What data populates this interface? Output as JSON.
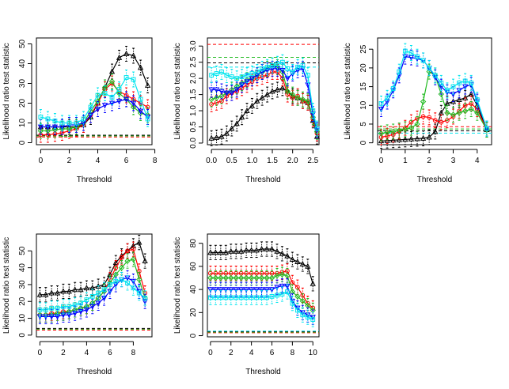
{
  "figure": {
    "background": "#ffffff"
  },
  "series_colors": {
    "s1": "#000000",
    "s2": "#ff0000",
    "s3": "#22bb22",
    "s4": "#0000ff",
    "s5": "#00e5ee"
  },
  "chart_data": [
    {
      "type": "line",
      "xlabel": "Threshold",
      "ylabel": "Likelihood ratio test statistic",
      "xlim": [
        -0.3,
        7.8
      ],
      "ylim": [
        -1,
        53
      ],
      "xticks": [
        0,
        2,
        4,
        6,
        8
      ],
      "yticks": [
        0,
        10,
        20,
        30,
        40,
        50
      ],
      "x": [
        0,
        0.5,
        1,
        1.5,
        2,
        2.5,
        3,
        3.5,
        4,
        4.5,
        5,
        5.5,
        6,
        6.5,
        7,
        7.5
      ],
      "reference_lines": [
        2.9,
        3.4,
        3.8
      ],
      "series": [
        {
          "values": [
            8,
            8,
            8,
            8,
            8,
            8,
            9,
            13,
            20,
            28,
            36,
            43,
            45,
            44,
            38,
            29
          ]
        },
        {
          "values": [
            4,
            4,
            4.5,
            5,
            6,
            7,
            9,
            14,
            20,
            27,
            30,
            26,
            24,
            22,
            20,
            18
          ]
        },
        {
          "values": [
            6,
            6,
            6.5,
            7,
            7,
            8,
            10,
            16,
            21,
            28,
            31,
            25,
            22,
            18,
            15,
            14
          ]
        },
        {
          "values": [
            8,
            8,
            8,
            8,
            9,
            9,
            10,
            14,
            17,
            19,
            20,
            21,
            22,
            20,
            16,
            13
          ]
        },
        {
          "values": [
            13,
            12,
            11,
            10,
            10,
            10,
            12,
            18,
            24,
            25,
            23,
            27,
            33,
            32,
            22,
            12
          ]
        }
      ]
    },
    {
      "type": "line",
      "xlabel": "Threshold",
      "ylabel": "Likelihood ratio test statistic",
      "xlim": [
        -0.1,
        2.65
      ],
      "ylim": [
        -0.05,
        3.25
      ],
      "xticks": [
        0.0,
        0.5,
        1.0,
        1.5,
        2.0,
        2.5
      ],
      "yticks": [
        0.0,
        0.5,
        1.0,
        1.5,
        2.0,
        2.5,
        3.0
      ],
      "x": [
        0,
        0.125,
        0.25,
        0.375,
        0.5,
        0.625,
        0.75,
        0.875,
        1.0,
        1.125,
        1.25,
        1.375,
        1.5,
        1.625,
        1.75,
        1.875,
        2.0,
        2.125,
        2.25,
        2.375,
        2.5,
        2.6
      ],
      "reference_lines": [
        3.05,
        2.65,
        2.48,
        2.35
      ],
      "series": [
        {
          "values": [
            0.15,
            0.17,
            0.2,
            0.3,
            0.45,
            0.6,
            0.8,
            1.0,
            1.15,
            1.3,
            1.4,
            1.5,
            1.6,
            1.65,
            1.7,
            1.6,
            1.45,
            1.4,
            1.3,
            1.25,
            0.7,
            0.2
          ]
        },
        {
          "values": [
            1.2,
            1.25,
            1.3,
            1.45,
            1.55,
            1.6,
            1.7,
            1.8,
            1.9,
            2.0,
            2.05,
            2.1,
            2.2,
            2.2,
            2.0,
            1.5,
            1.4,
            1.45,
            1.3,
            1.25,
            0.75,
            0.3
          ]
        },
        {
          "values": [
            1.35,
            1.4,
            1.45,
            1.55,
            1.65,
            1.75,
            1.85,
            1.95,
            2.0,
            2.1,
            2.2,
            2.3,
            2.4,
            2.35,
            2.2,
            1.6,
            1.5,
            1.4,
            1.35,
            1.3,
            0.8,
            0.35
          ]
        },
        {
          "values": [
            1.65,
            1.65,
            1.6,
            1.55,
            1.55,
            1.65,
            1.8,
            1.9,
            2.0,
            2.1,
            2.2,
            2.25,
            2.3,
            2.3,
            2.25,
            2.0,
            2.15,
            2.25,
            2.3,
            1.8,
            0.9,
            0.4
          ]
        },
        {
          "values": [
            2.1,
            2.15,
            2.2,
            2.1,
            2.05,
            2.0,
            2.05,
            2.1,
            2.15,
            2.2,
            2.3,
            2.35,
            2.4,
            2.45,
            2.5,
            2.3,
            2.2,
            2.35,
            2.4,
            2.1,
            1.0,
            0.45
          ]
        }
      ]
    },
    {
      "type": "line",
      "xlabel": "Threshold",
      "ylabel": "Likelihood ratio test statistic",
      "xlim": [
        -0.15,
        4.6
      ],
      "ylim": [
        -0.5,
        28
      ],
      "xticks": [
        0,
        1,
        2,
        3,
        4
      ],
      "yticks": [
        0,
        5,
        10,
        15,
        20,
        25
      ],
      "x": [
        0,
        0.25,
        0.5,
        0.75,
        1.0,
        1.25,
        1.5,
        1.75,
        2.0,
        2.25,
        2.5,
        2.75,
        3.0,
        3.25,
        3.5,
        3.75,
        4.0,
        4.4
      ],
      "reference_lines": [
        4.3,
        3.7,
        3.2,
        2.6
      ],
      "series": [
        {
          "values": [
            0.5,
            0.6,
            0.7,
            0.8,
            0.9,
            1.0,
            1.1,
            1.2,
            1.5,
            3.0,
            8.0,
            10.5,
            11.0,
            11.5,
            12.0,
            13.0,
            10.0,
            3.5
          ]
        },
        {
          "values": [
            1.5,
            1.8,
            2.2,
            3.0,
            4.0,
            5.5,
            6.5,
            7.0,
            6.8,
            6.0,
            5.5,
            6.0,
            7.0,
            8.5,
            10.0,
            10.5,
            9.0,
            3.5
          ]
        },
        {
          "values": [
            2.5,
            2.8,
            3.0,
            3.3,
            3.6,
            4.0,
            5.0,
            11.0,
            19.0,
            18.0,
            13.0,
            8.0,
            7.5,
            8.0,
            8.5,
            9.0,
            8.0,
            3.5
          ]
        },
        {
          "values": [
            9.0,
            11.0,
            14.0,
            18.0,
            23.0,
            22.8,
            22.5,
            22.0,
            20.0,
            17.5,
            15.0,
            13.5,
            13.0,
            14.0,
            15.0,
            15.5,
            11.0,
            3.8
          ]
        },
        {
          "values": [
            10.5,
            12.0,
            14.5,
            19.0,
            24.5,
            24.0,
            23.0,
            22.0,
            20.0,
            18.0,
            16.0,
            14.0,
            15.0,
            16.0,
            16.5,
            16.0,
            11.5,
            3.8
          ]
        }
      ]
    },
    {
      "type": "line",
      "xlabel": "Threshold",
      "ylabel": "Likelihood ratio test statistic",
      "xlim": [
        -0.3,
        9.6
      ],
      "ylim": [
        -1,
        60
      ],
      "xticks": [
        0,
        2,
        4,
        6,
        8
      ],
      "yticks": [
        0,
        10,
        20,
        30,
        40,
        50
      ],
      "x": [
        0,
        0.5,
        1,
        1.5,
        2,
        2.5,
        3,
        3.5,
        4,
        4.5,
        5,
        5.5,
        6,
        6.5,
        7,
        7.5,
        8,
        8.5,
        9
      ],
      "reference_lines": [
        3.0,
        3.5,
        4.0
      ],
      "series": [
        {
          "values": [
            24,
            24,
            25,
            25,
            26,
            26,
            27,
            27,
            28,
            28,
            29,
            30,
            36,
            43,
            47,
            50,
            53,
            55,
            44
          ]
        },
        {
          "values": [
            12,
            12,
            13,
            13,
            14,
            14,
            15,
            16,
            17,
            19,
            22,
            26,
            33,
            40,
            46,
            50,
            51,
            38,
            25
          ]
        },
        {
          "values": [
            12,
            12,
            12,
            13,
            13,
            14,
            15,
            16,
            17,
            19,
            22,
            26,
            31,
            36,
            40,
            44,
            45,
            33,
            22
          ]
        },
        {
          "values": [
            11,
            11,
            11,
            11,
            12,
            12,
            13,
            14,
            15,
            17,
            19,
            22,
            26,
            30,
            33,
            34,
            32,
            26,
            20
          ]
        },
        {
          "values": [
            15,
            15,
            16,
            16,
            17,
            17,
            18,
            19,
            21,
            23,
            25,
            27,
            30,
            32,
            33,
            31,
            28,
            25,
            22
          ]
        }
      ]
    },
    {
      "type": "line",
      "xlabel": "Threshold",
      "ylabel": "Likelihood ratio test statistic",
      "xlim": [
        -0.3,
        10.6
      ],
      "ylim": [
        -1,
        88
      ],
      "xticks": [
        0,
        2,
        4,
        6,
        8,
        10
      ],
      "yticks": [
        0,
        20,
        40,
        60,
        80
      ],
      "x": [
        0,
        0.5,
        1,
        1.5,
        2,
        2.5,
        3,
        3.5,
        4,
        4.5,
        5,
        5.5,
        6,
        6.5,
        7,
        7.5,
        8,
        8.5,
        9,
        9.5,
        10
      ],
      "reference_lines": [
        2.5,
        3.0,
        3.5,
        4.0
      ],
      "series": [
        {
          "values": [
            72,
            72,
            72,
            72,
            73,
            73,
            73,
            74,
            74,
            74,
            75,
            75,
            75,
            73,
            71,
            69,
            66,
            64,
            62,
            60,
            45
          ]
        },
        {
          "values": [
            54,
            54,
            54,
            54,
            54,
            54,
            54,
            54,
            54,
            54,
            54,
            54,
            54,
            54,
            55,
            56,
            46,
            42,
            35,
            28,
            24
          ]
        },
        {
          "values": [
            50,
            50,
            50,
            50,
            50,
            50,
            50,
            50,
            50,
            50,
            50,
            50,
            50,
            52,
            53,
            52,
            38,
            34,
            30,
            26,
            22
          ]
        },
        {
          "values": [
            40,
            40,
            40,
            40,
            40,
            40,
            40,
            40,
            40,
            40,
            40,
            40,
            40,
            42,
            43,
            43,
            30,
            24,
            20,
            18,
            16
          ]
        },
        {
          "values": [
            33,
            33,
            33,
            33,
            33,
            33,
            33,
            33,
            33,
            33,
            33,
            33,
            34,
            35,
            36,
            38,
            28,
            22,
            18,
            16,
            14
          ]
        }
      ]
    }
  ]
}
